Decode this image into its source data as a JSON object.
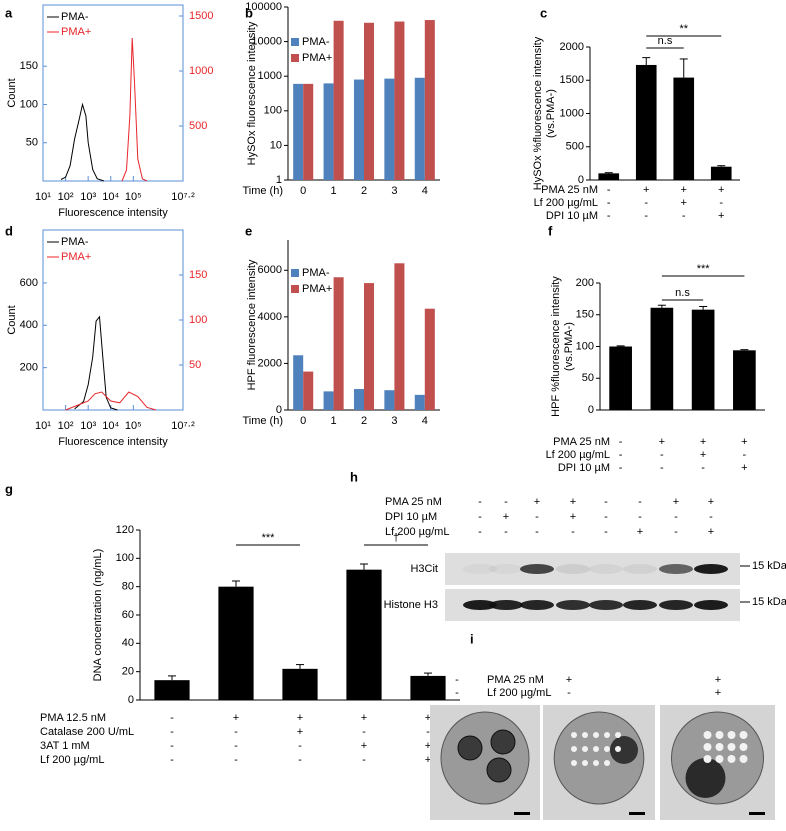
{
  "chart_data": [
    {
      "panel": "a",
      "type": "line",
      "ylabel": "Count",
      "xlabel": "Fluorescence  intensity",
      "x_log_scale": true,
      "xlim": [
        10,
        15848932
      ],
      "xticks": [
        {
          "value": 10,
          "label": "10¹"
        },
        {
          "value": 100,
          "label": "10²"
        },
        {
          "value": 1000,
          "label": "10³"
        },
        {
          "value": 10000,
          "label": "10⁴"
        },
        {
          "value": 100000,
          "label": "10⁵"
        },
        {
          "value": 15848932,
          "label": "10⁷·²"
        }
      ],
      "ylim": [
        0,
        230
      ],
      "yticks": [
        50,
        100,
        150
      ],
      "y2lim": [
        0,
        1600
      ],
      "y2ticks": [
        500,
        1000,
        1500
      ],
      "frame_color": "#5b8fd6",
      "legend": "upper left",
      "series": [
        {
          "name": "PMA-",
          "color": "#000000",
          "x": [
            63,
            100,
            158,
            251,
            398,
            562,
            794,
            1000,
            1585,
            2512,
            5012
          ],
          "values": [
            2,
            5,
            20,
            55,
            80,
            100,
            85,
            50,
            15,
            3,
            0
          ]
        },
        {
          "name": "PMA+",
          "color": "#e8262a",
          "axis": "y2",
          "x": [
            31623,
            50119,
            70795,
            89125,
            112202,
            158489,
            251189,
            398107
          ],
          "values": [
            0,
            100,
            600,
            1300,
            900,
            200,
            20,
            0
          ]
        }
      ]
    },
    {
      "panel": "b",
      "type": "bar",
      "ylabel": "HySOx fluorescence  intensity",
      "xlabel": "Time (h)",
      "categories": [
        "0",
        "1",
        "2",
        "3",
        "4"
      ],
      "y_log_scale": true,
      "ylim": [
        1,
        100000
      ],
      "yticks": [
        1,
        10,
        100,
        1000,
        10000,
        100000
      ],
      "legend": "upper left",
      "series": [
        {
          "name": "PMA-",
          "color": "#4f81bd",
          "values": [
            600,
            620,
            800,
            850,
            900
          ]
        },
        {
          "name": "PMA+",
          "color": "#c0504d",
          "values": [
            600,
            40000,
            35000,
            38000,
            42000
          ]
        }
      ]
    },
    {
      "panel": "c",
      "type": "bar",
      "ylabel": [
        "HySOx  %fluorescence  intensity",
        "(vs.PMA-)"
      ],
      "ylim": [
        0,
        2000
      ],
      "yticks": [
        0,
        500,
        1000,
        1500,
        2000
      ],
      "color": "#000000",
      "values": [
        100,
        1730,
        1540,
        200
      ],
      "error": [
        10,
        110,
        280,
        15
      ],
      "annotations": [
        "n.s",
        "**"
      ],
      "conditions": [
        {
          "label": "PMA 25 nM",
          "values": [
            "-",
            "+",
            "+",
            "+"
          ]
        },
        {
          "label": "Lf 200 µg/mL",
          "values": [
            "-",
            "-",
            "+",
            "-"
          ]
        },
        {
          "label": "DPI 10 µM",
          "values": [
            "-",
            "-",
            "-",
            "+"
          ]
        }
      ]
    },
    {
      "panel": "d",
      "type": "line",
      "ylabel": "Count",
      "xlabel": "Fluorescence  intensity",
      "x_log_scale": true,
      "xlim": [
        10,
        15848932
      ],
      "xticks": [
        {
          "value": 10,
          "label": "10¹"
        },
        {
          "value": 100,
          "label": "10²"
        },
        {
          "value": 1000,
          "label": "10³"
        },
        {
          "value": 10000,
          "label": "10⁴"
        },
        {
          "value": 100000,
          "label": "10⁵"
        },
        {
          "value": 15848932,
          "label": "10⁷·²"
        }
      ],
      "ylim": [
        0,
        850
      ],
      "yticks": [
        200,
        400,
        600
      ],
      "y2lim": [
        0,
        200
      ],
      "y2ticks": [
        50,
        100,
        150
      ],
      "frame_color": "#5b8fd6",
      "legend": "upper left",
      "series": [
        {
          "name": "PMA-",
          "color": "#000000",
          "x": [
            251,
            631,
            1000,
            1585,
            2239,
            3162,
            4467,
            6310,
            10000,
            19953
          ],
          "values": [
            5,
            40,
            120,
            250,
            420,
            440,
            250,
            60,
            10,
            0
          ]
        },
        {
          "name": "PMA+",
          "color": "#e8262a",
          "axis": "y2",
          "x": [
            100,
            316,
            1000,
            1995,
            3981,
            10000,
            25119,
            63096,
            158489,
            398107,
            1000000
          ],
          "values": [
            0,
            5,
            10,
            18,
            20,
            10,
            8,
            20,
            15,
            3,
            0
          ]
        }
      ]
    },
    {
      "panel": "e",
      "type": "bar",
      "ylabel": "HPF fluorescence  intensity",
      "xlabel": "Time (h)",
      "categories": [
        "0",
        "1",
        "2",
        "3",
        "4"
      ],
      "ylim": [
        0,
        7300
      ],
      "yticks": [
        0,
        2000,
        4000,
        6000
      ],
      "legend": "upper left",
      "series": [
        {
          "name": "PMA-",
          "color": "#4f81bd",
          "values": [
            2350,
            800,
            900,
            850,
            650
          ]
        },
        {
          "name": "PMA+",
          "color": "#c0504d",
          "values": [
            1650,
            5700,
            5450,
            6300,
            4350
          ]
        }
      ]
    },
    {
      "panel": "f",
      "type": "bar",
      "ylabel": [
        "HPF  %fluorescence  intensity",
        "(vs.PMA-)"
      ],
      "ylim": [
        0,
        200
      ],
      "yticks": [
        0,
        50,
        100,
        150,
        200
      ],
      "color": "#000000",
      "values": [
        100,
        161,
        158,
        94
      ],
      "error": [
        1,
        4,
        5,
        1
      ],
      "annotations": [
        "n.s",
        "***"
      ],
      "conditions": [
        {
          "label": "PMA 25 nM",
          "values": [
            "-",
            "+",
            "+",
            "+"
          ]
        },
        {
          "label": "Lf 200 µg/mL",
          "values": [
            "-",
            "-",
            "+",
            "-"
          ]
        },
        {
          "label": "DPI 10 µM",
          "values": [
            "-",
            "-",
            "-",
            "+"
          ]
        }
      ]
    },
    {
      "panel": "g",
      "type": "bar",
      "ylabel": "DNA concentration (ng/mL)",
      "ylim": [
        0,
        120
      ],
      "yticks": [
        0,
        20,
        40,
        60,
        80,
        100,
        120
      ],
      "color": "#000000",
      "values": [
        14,
        80,
        22,
        92,
        17
      ],
      "error": [
        3,
        4,
        3,
        4,
        2
      ],
      "annotations": [
        "***",
        "†"
      ],
      "conditions": [
        {
          "label": "PMA 12.5 nM",
          "values": [
            "-",
            "+",
            "+",
            "+",
            "+"
          ]
        },
        {
          "label": "Catalase 200 U/mL",
          "values": [
            "-",
            "-",
            "+",
            "-",
            "-"
          ]
        },
        {
          "label": "3AT 1 mM",
          "values": [
            "-",
            "-",
            "-",
            "+",
            "+"
          ]
        },
        {
          "label": "Lf 200 µg/mL",
          "values": [
            "-",
            "-",
            "-",
            "-",
            "+"
          ]
        }
      ]
    }
  ],
  "blot": {
    "panel": "h",
    "conditions": [
      {
        "label": "PMA 25 nM",
        "values": [
          "-",
          "-",
          "+",
          "+",
          "-",
          "-",
          "+",
          "+"
        ]
      },
      {
        "label": "DPI 10 µM",
        "values": [
          "-",
          "+",
          "-",
          "+",
          "-",
          "-",
          "-",
          "-"
        ]
      },
      {
        "label": "Lf 200 µg/mL",
        "values": [
          "-",
          "-",
          "-",
          "-",
          "-",
          "+",
          "-",
          "+"
        ]
      }
    ],
    "bands": [
      "H3Cit",
      "Histone H3"
    ],
    "markers": [
      "15 kDa",
      "15 kDa"
    ]
  },
  "micrographs": {
    "panel": "i",
    "conditions": [
      {
        "label": "PMA  25 nM",
        "values": [
          "-",
          "+",
          "+"
        ]
      },
      {
        "label": "Lf 200 µg/mL",
        "values": [
          "-",
          "-",
          "+"
        ]
      }
    ]
  }
}
